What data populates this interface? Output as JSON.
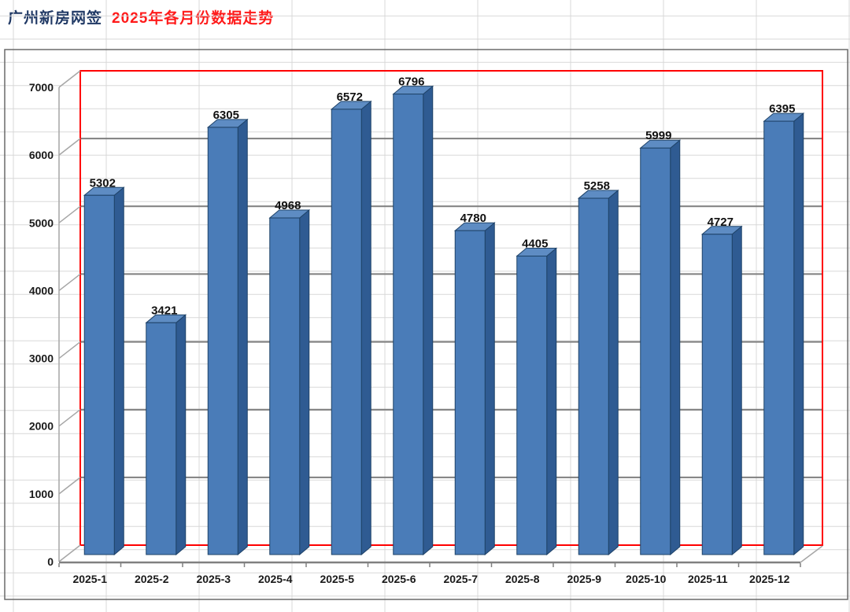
{
  "header": {
    "title_primary": "广州新房网签",
    "title_secondary": "2025年各月份数据走势",
    "primary_color": "#1F3864",
    "secondary_color": "#FF1A1A"
  },
  "chart_data": {
    "type": "bar",
    "style": "3d-column-excel",
    "categories": [
      "2025-1",
      "2025-2",
      "2025-3",
      "2025-4",
      "2025-5",
      "2025-6",
      "2025-7",
      "2025-8",
      "2025-9",
      "2025-10",
      "2025-11",
      "2025-12"
    ],
    "values": [
      5302,
      3421,
      6305,
      4968,
      6572,
      6796,
      4780,
      4405,
      5258,
      5999,
      4727,
      6395
    ],
    "title": "",
    "xlabel": "",
    "ylabel": "",
    "ylim": [
      0,
      7000
    ],
    "ytick_step": 1000,
    "ytick_labels": [
      "0",
      "1000",
      "2000",
      "3000",
      "4000",
      "5000",
      "6000",
      "7000"
    ],
    "data_labels": true,
    "grid": true,
    "legend": false,
    "colors": {
      "bar_front": "#4A7CB8",
      "bar_side": "#2F5B92",
      "bar_top": "#5E8CC3",
      "bar_edge": "#1F4369",
      "plot_border": "#FF0000",
      "gridline": "#7F7F7F",
      "axis_line": "#808080",
      "depth_line": "#A6A6A6",
      "tick_label": "#1a1a1a",
      "value_label": "#111111",
      "spreadsheet_grid": "#D8D8D8",
      "chart_frame": "#6a6a6a"
    }
  }
}
